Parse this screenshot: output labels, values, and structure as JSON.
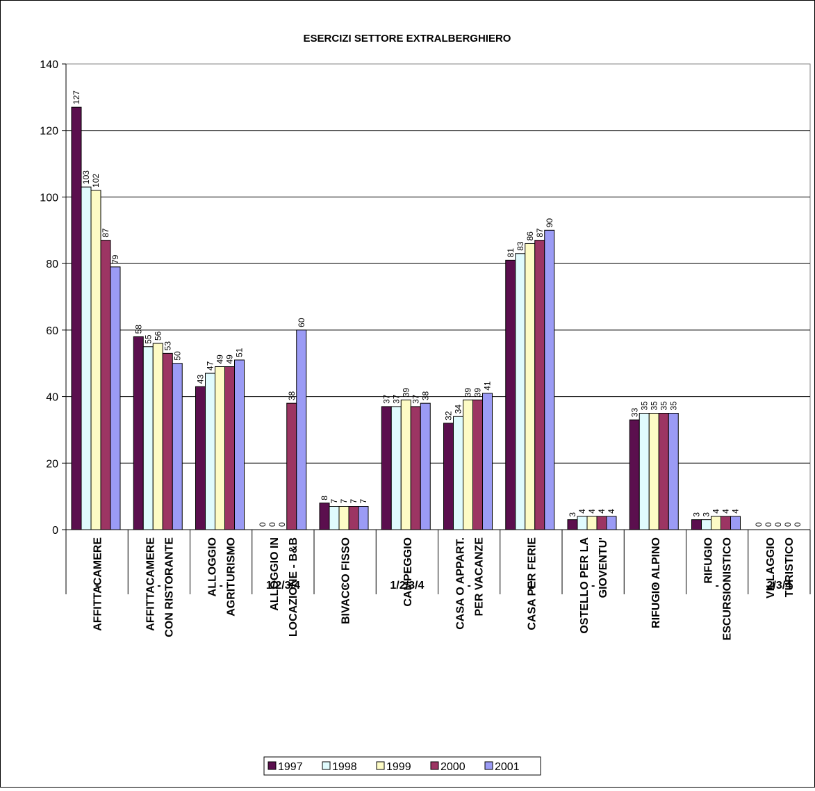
{
  "chart_data": {
    "type": "bar",
    "title": "ESERCIZI SETTORE EXTRALBERGHIERO",
    "xlabel": "",
    "ylabel": "",
    "ylim": [
      0,
      140
    ],
    "yticks": [
      "0",
      "20",
      "40",
      "60",
      "80",
      "100",
      "120",
      "140"
    ],
    "grid": true,
    "legend_position": "bottom",
    "categories": [
      "AFFITTACAMERE",
      "AFFITTACAMERE CON RISTORANTE",
      "ALLOGGIO AGRITURISMO",
      "ALLOGGIO IN LOCAZIONE - B&B",
      "BIVACCO FISSO",
      "CAMPEGGIO",
      "CASA O APPART. PER VACANZE",
      "CASA PER FERIE",
      "OSTELLO PER LA GIOVENTU'",
      "RIFUGIO ALPINO",
      "RIFUGIO ESCURSIONISTICO",
      "VILLAGGIO TURISTICO"
    ],
    "category_lines": [
      [
        "AFFITTACAMERE"
      ],
      [
        "AFFITTACAMERE",
        "CON RISTORANTE"
      ],
      [
        "ALLOGGIO",
        "AGRITURISMO"
      ],
      [
        "ALLOGGIO IN",
        "LOCAZIONE - B&B"
      ],
      [
        "BIVACCO FISSO"
      ],
      [
        "CAMPEGGIO"
      ],
      [
        "CASA O APPART.",
        "PER VACANZE"
      ],
      [
        "CASA PER FERIE"
      ],
      [
        "OSTELLO PER LA",
        "GIOVENTU'"
      ],
      [
        "RIFUGIO ALPINO"
      ],
      [
        "RIFUGIO",
        "ESCURSIONISTICO"
      ],
      [
        "VILLAGGIO",
        "TURISTICO"
      ]
    ],
    "subcategories": [
      "-",
      "-",
      "-",
      "1/2/3/4",
      "-",
      "1/2/3/4",
      "-",
      "1",
      "-",
      "-",
      "-",
      "2/3/4"
    ],
    "series": [
      {
        "name": "1997",
        "color": "#5b0f4e",
        "values": [
          127,
          58,
          43,
          0,
          8,
          37,
          32,
          81,
          3,
          33,
          3,
          0
        ]
      },
      {
        "name": "1998",
        "color": "#e0fbfd",
        "values": [
          103,
          55,
          47,
          0,
          7,
          37,
          34,
          83,
          4,
          35,
          3,
          0
        ]
      },
      {
        "name": "1999",
        "color": "#fdfbc5",
        "values": [
          102,
          56,
          49,
          0,
          7,
          39,
          39,
          86,
          4,
          35,
          4,
          0
        ]
      },
      {
        "name": "2000",
        "color": "#9c3563",
        "values": [
          87,
          53,
          49,
          38,
          7,
          37,
          39,
          87,
          4,
          35,
          4,
          0
        ]
      },
      {
        "name": "2001",
        "color": "#9b9bf5",
        "values": [
          79,
          50,
          51,
          60,
          7,
          38,
          41,
          90,
          4,
          35,
          4,
          0
        ]
      }
    ]
  }
}
